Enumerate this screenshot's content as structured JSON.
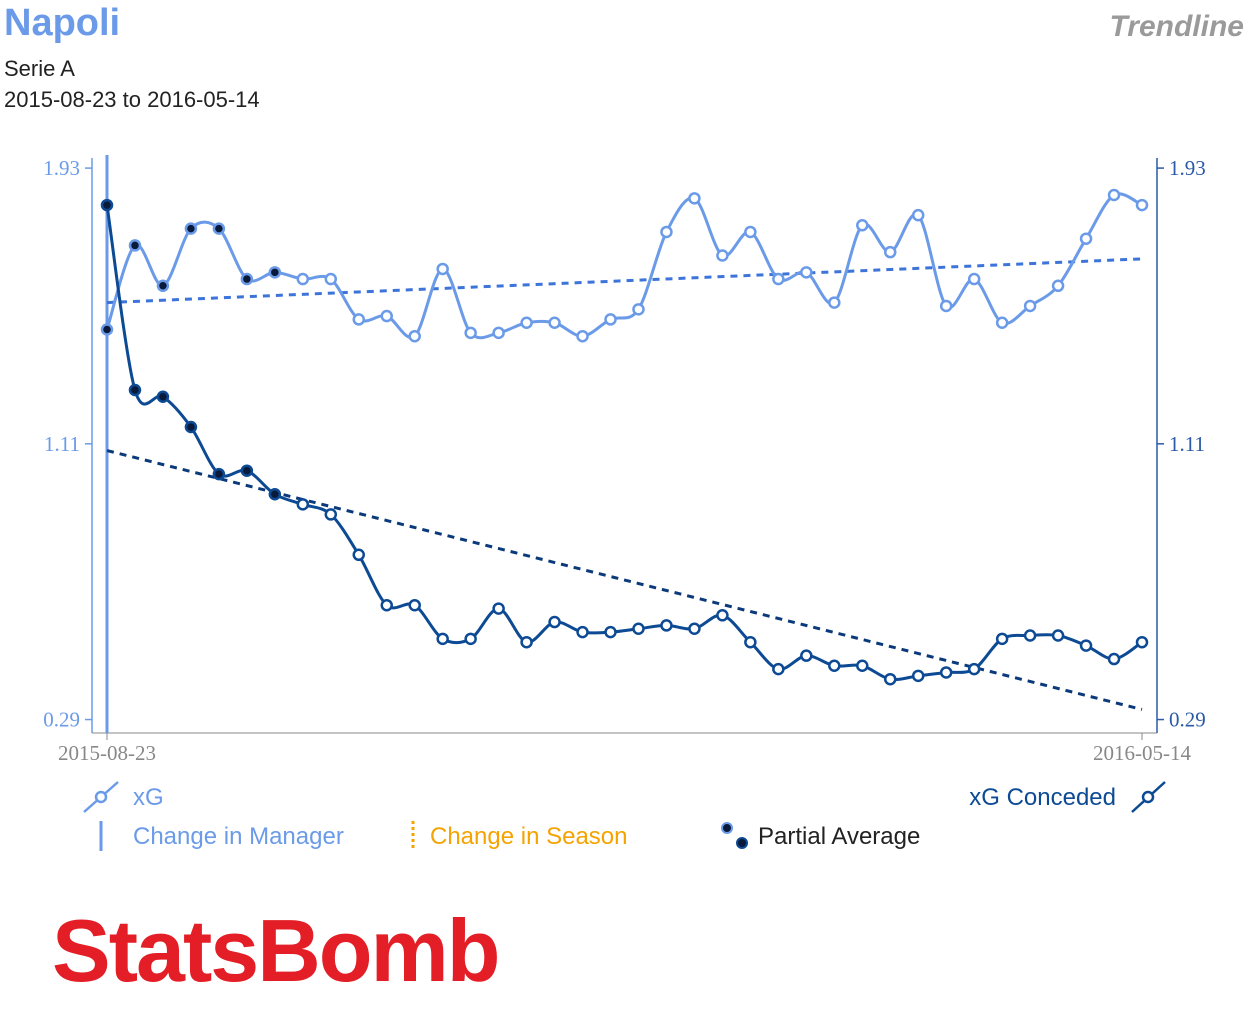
{
  "header": {
    "team": "Napoli",
    "competition": "Serie A",
    "date_range": "2015-08-23 to 2016-05-14",
    "chart_kind": "Trendline"
  },
  "colors": {
    "xg": "#6b9be8",
    "xg_conceded": "#0d4a94",
    "xg_trend": "#3d74d9",
    "xg_conceded_trend": "#0b3a7a",
    "manager_change": "#6b9be8",
    "season_change": "#f5a300",
    "partial_average": "#0a1a3a",
    "axis_left": "#6b9be8",
    "axis_right": "#2a5aa8",
    "logo": "#e41e26"
  },
  "legend": {
    "xg": "xG",
    "xg_conceded": "xG Conceded",
    "change_manager": "Change in Manager",
    "change_season": "Change in Season",
    "partial_average": "Partial Average"
  },
  "logo": {
    "text": "StatsBomb"
  },
  "chart_data": {
    "type": "line",
    "title": "Napoli",
    "x_start_label": "2015-08-23",
    "x_end_label": "2016-05-14",
    "ylim": [
      0.25,
      1.96
    ],
    "yticks": [
      0.29,
      1.11,
      1.93
    ],
    "ytick_labels": [
      "0.29",
      "1.11",
      "1.93"
    ],
    "match_index": [
      1,
      2,
      3,
      4,
      5,
      6,
      7,
      8,
      9,
      10,
      11,
      12,
      13,
      14,
      15,
      16,
      17,
      18,
      19,
      20,
      21,
      22,
      23,
      24,
      25,
      26,
      27,
      28,
      29,
      30,
      31,
      32,
      33,
      34,
      35,
      36,
      37,
      38
    ],
    "partial_average_count": 7,
    "manager_change_at": 1,
    "series": [
      {
        "name": "xG",
        "values": [
          1.45,
          1.7,
          1.58,
          1.75,
          1.75,
          1.6,
          1.62,
          1.6,
          1.6,
          1.48,
          1.49,
          1.43,
          1.63,
          1.44,
          1.44,
          1.47,
          1.47,
          1.43,
          1.48,
          1.51,
          1.74,
          1.84,
          1.67,
          1.74,
          1.6,
          1.62,
          1.53,
          1.76,
          1.68,
          1.79,
          1.52,
          1.6,
          1.47,
          1.52,
          1.58,
          1.72,
          1.85,
          1.82
        ],
        "trend": [
          1.53,
          1.66
        ]
      },
      {
        "name": "xG Conceded",
        "values": [
          1.82,
          1.27,
          1.25,
          1.16,
          1.02,
          1.03,
          0.96,
          0.93,
          0.9,
          0.78,
          0.63,
          0.63,
          0.53,
          0.53,
          0.62,
          0.52,
          0.58,
          0.55,
          0.55,
          0.56,
          0.57,
          0.56,
          0.6,
          0.52,
          0.44,
          0.48,
          0.45,
          0.45,
          0.41,
          0.42,
          0.43,
          0.44,
          0.53,
          0.54,
          0.54,
          0.51,
          0.47,
          0.52
        ],
        "trend": [
          1.09,
          0.32
        ]
      }
    ]
  }
}
